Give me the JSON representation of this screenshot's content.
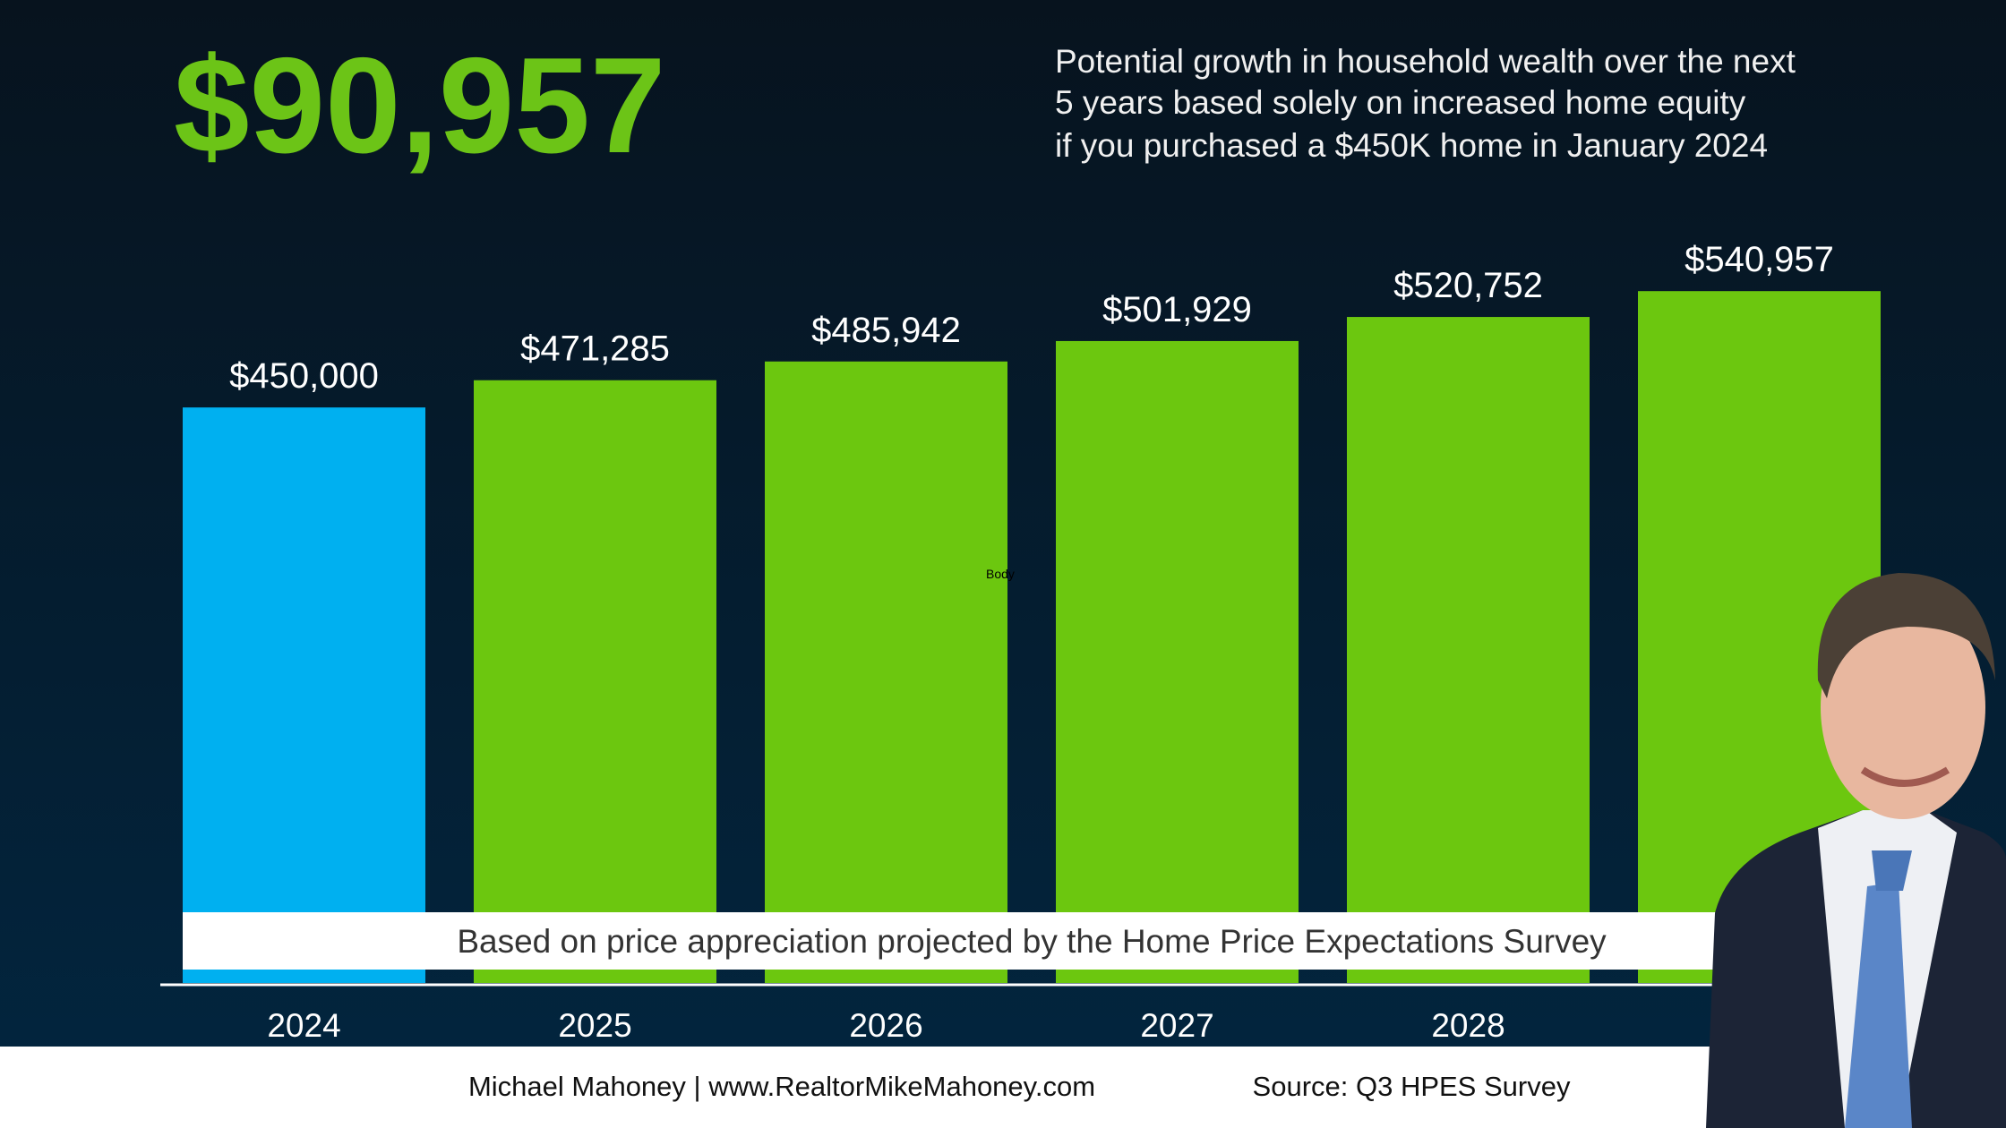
{
  "headline": "$90,957",
  "subtitle": [
    "Potential growth in household wealth over the next",
    "5 years based solely on increased home equity",
    "if you purchased a $450K home in January 2024"
  ],
  "chart_data": {
    "type": "bar",
    "categories": [
      "2024",
      "2025",
      "2026",
      "2027",
      "2028",
      null
    ],
    "values": [
      450000,
      471285,
      485942,
      501929,
      520752,
      540957
    ],
    "value_labels": [
      "$450,000",
      "$471,285",
      "$485,942",
      "$501,929",
      "$520,752",
      "$540,957"
    ],
    "colors": [
      "#00b0f0",
      "#6cc70f",
      "#6cc70f",
      "#6cc70f",
      "#6cc70f",
      "#6cc70f"
    ],
    "annotation": "Based on price appreciation projected by the Home Price Expectations Survey",
    "placeholder": "Body"
  },
  "footer": {
    "credit": "Michael Mahoney | www.RealtorMikeMahoney.com",
    "source": "Source: Q3 HPES Survey"
  }
}
